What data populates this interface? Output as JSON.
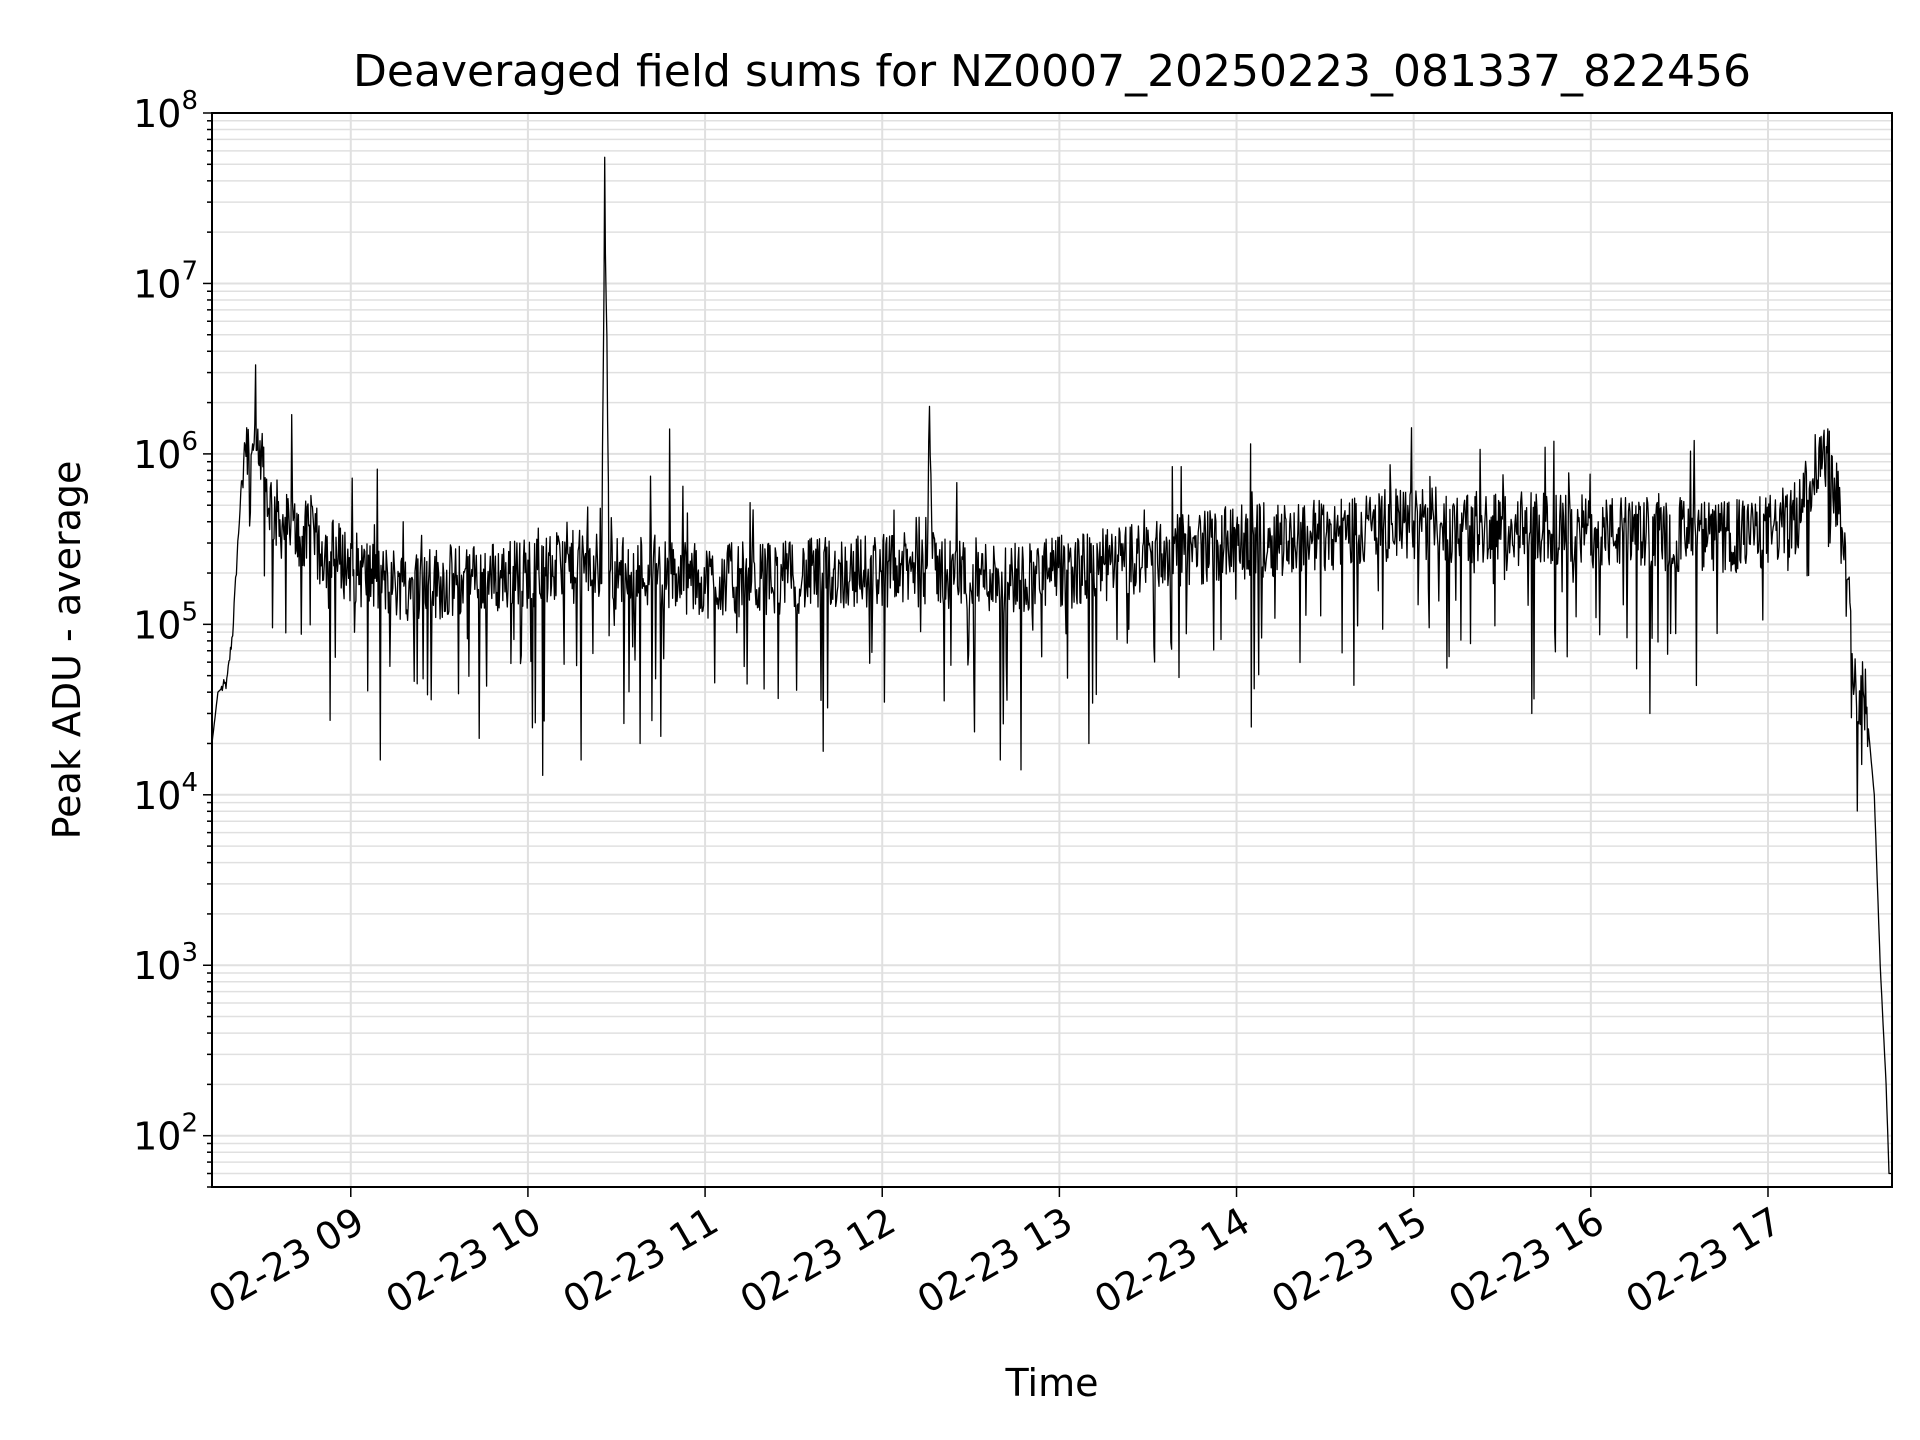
{
  "chart_data": {
    "type": "line",
    "title": "Deaveraged field sums for NZ0007_20250223_081337_822456",
    "xlabel": "Time",
    "ylabel": "Peak ADU - average",
    "yscale": "log",
    "ylim": [
      50,
      100000000
    ],
    "xlim": [
      "02-23 08:13",
      "02-23 17:42"
    ],
    "grid": true,
    "line_color": "#000000",
    "grid_color": "#e0e0e0",
    "x_tick_labels": [
      "02-23 09",
      "02-23 10",
      "02-23 11",
      "02-23 12",
      "02-23 13",
      "02-23 14",
      "02-23 15",
      "02-23 16",
      "02-23 17"
    ],
    "y_tick_labels": [
      {
        "base": "10",
        "exp": "2"
      },
      {
        "base": "10",
        "exp": "3"
      },
      {
        "base": "10",
        "exp": "4"
      },
      {
        "base": "10",
        "exp": "5"
      },
      {
        "base": "10",
        "exp": "6"
      },
      {
        "base": "10",
        "exp": "7"
      },
      {
        "base": "10",
        "exp": "8"
      }
    ],
    "series": [
      {
        "x": [
          "02-23 08:13",
          "02-23 08:15",
          "02-23 08:18",
          "02-23 08:20",
          "02-23 08:22",
          "02-23 08:24",
          "02-23 08:26",
          "02-23 08:28",
          "02-23 08:30",
          "02-23 08:33",
          "02-23 08:36",
          "02-23 08:40",
          "02-23 08:45",
          "02-23 08:50",
          "02-23 08:55",
          "02-23 09:00",
          "02-23 09:10",
          "02-23 09:20",
          "02-23 09:30",
          "02-23 09:40",
          "02-23 09:50",
          "02-23 10:00",
          "02-23 10:10",
          "02-23 10:20",
          "02-23 10:25",
          "02-23 10:26",
          "02-23 10:27",
          "02-23 10:28",
          "02-23 10:40",
          "02-23 10:50",
          "02-23 11:00",
          "02-23 11:15",
          "02-23 11:30",
          "02-23 11:45",
          "02-23 12:00",
          "02-23 12:15",
          "02-23 12:16",
          "02-23 12:17",
          "02-23 12:30",
          "02-23 12:45",
          "02-23 13:00",
          "02-23 13:15",
          "02-23 13:30",
          "02-23 13:45",
          "02-23 14:00",
          "02-23 14:15",
          "02-23 14:30",
          "02-23 14:45",
          "02-23 15:00",
          "02-23 15:15",
          "02-23 15:30",
          "02-23 15:45",
          "02-23 16:00",
          "02-23 16:15",
          "02-23 16:30",
          "02-23 16:45",
          "02-23 17:00",
          "02-23 17:10",
          "02-23 17:15",
          "02-23 17:18",
          "02-23 17:21",
          "02-23 17:24",
          "02-23 17:27",
          "02-23 17:30",
          "02-23 17:33",
          "02-23 17:36",
          "02-23 17:38",
          "02-23 17:40",
          "02-23 17:41"
        ],
        "y": [
          20000,
          40000,
          45000,
          90000,
          350000,
          1200000,
          1100000,
          900000,
          700000,
          500000,
          400000,
          350000,
          320000,
          280000,
          250000,
          220000,
          180000,
          170000,
          175000,
          180000,
          190000,
          200000,
          210000,
          220000,
          210000,
          55000000,
          1300000,
          200000,
          210000,
          190000,
          180000,
          185000,
          190000,
          200000,
          210000,
          205000,
          1900000,
          210000,
          195000,
          190000,
          200000,
          220000,
          250000,
          280000,
          300000,
          320000,
          340000,
          370000,
          390000,
          380000,
          370000,
          360000,
          350000,
          340000,
          330000,
          320000,
          350000,
          420000,
          800000,
          1000000,
          950000,
          500000,
          150000,
          42000,
          38000,
          10000,
          1000,
          200,
          60
        ]
      }
    ],
    "noise_amplitude_dex": 0.22,
    "dips": [
      {
        "x": "02-23 09:10",
        "y": 16000
      },
      {
        "x": "02-23 10:05",
        "y": 13000
      },
      {
        "x": "02-23 10:18",
        "y": 16000
      },
      {
        "x": "02-23 10:38",
        "y": 20000
      },
      {
        "x": "02-23 10:45",
        "y": 22000
      },
      {
        "x": "02-23 11:40",
        "y": 18000
      },
      {
        "x": "02-23 12:40",
        "y": 16000
      },
      {
        "x": "02-23 12:47",
        "y": 14000
      },
      {
        "x": "02-23 13:10",
        "y": 20000
      },
      {
        "x": "02-23 14:05",
        "y": 25000
      },
      {
        "x": "02-23 15:40",
        "y": 30000
      },
      {
        "x": "02-23 16:20",
        "y": 30000
      }
    ],
    "spikes": [
      {
        "x": "02-23 08:40",
        "y": 1700000
      },
      {
        "x": "02-23 10:26",
        "y": 55000000
      },
      {
        "x": "02-23 10:48",
        "y": 1400000
      },
      {
        "x": "02-23 12:16",
        "y": 1900000
      }
    ]
  }
}
